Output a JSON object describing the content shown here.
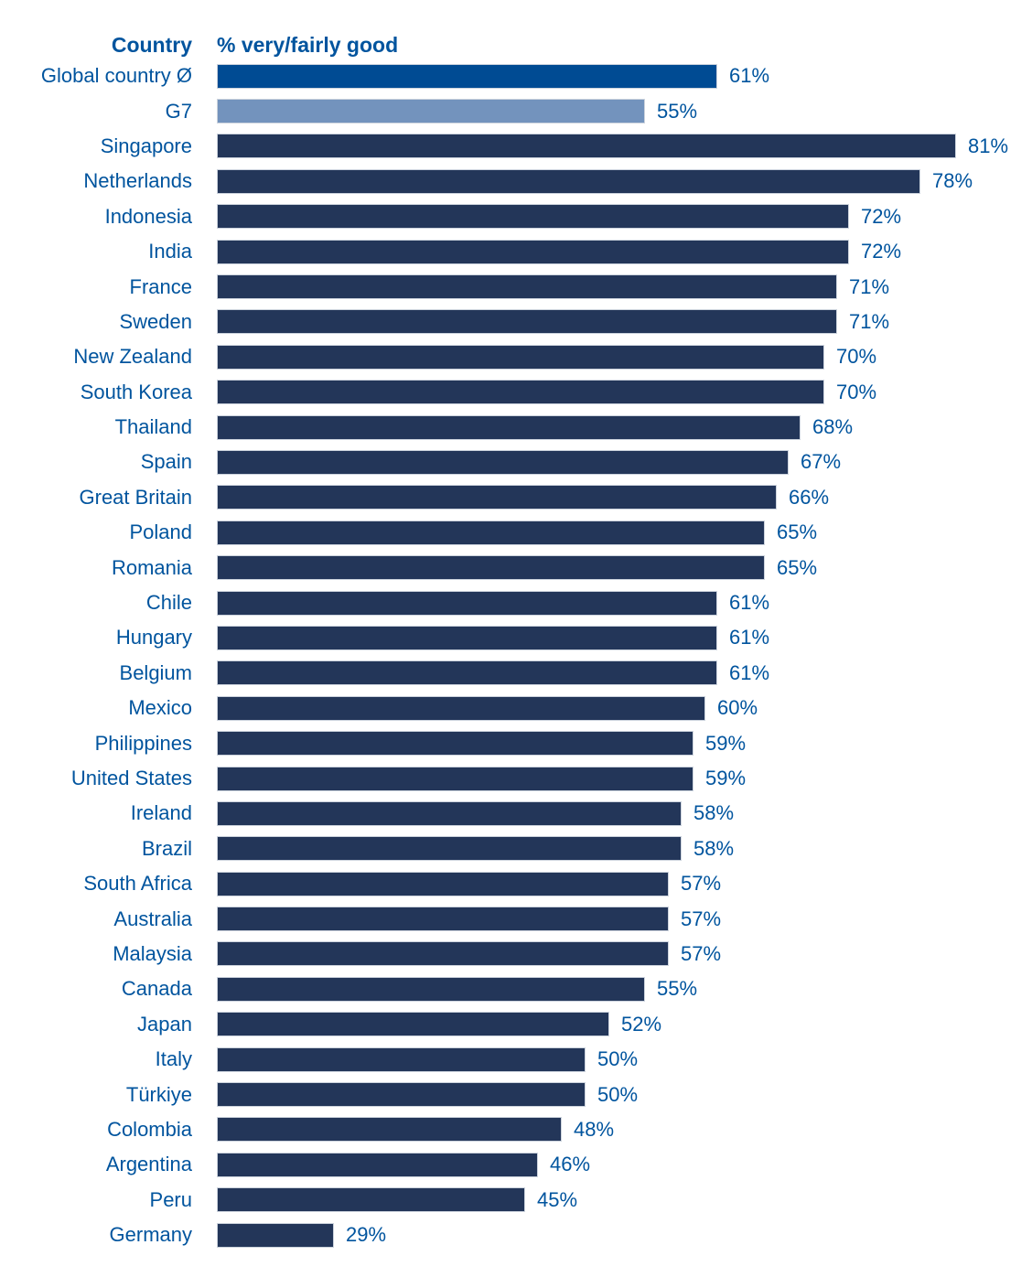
{
  "header": {
    "country_col": "Country",
    "value_col": "% very/fairly good"
  },
  "colors": {
    "text": "#00549e",
    "bar_default": "#233659",
    "bar_average": "#004b93",
    "bar_g7": "#7393bd",
    "bar_border": "#ccd3dd",
    "background": "#ffffff"
  },
  "chart_data": {
    "type": "bar",
    "orientation": "horizontal",
    "title": "",
    "columns": [
      "Country",
      "% very/fairly good"
    ],
    "value_format": "percent",
    "grid": false,
    "legend": false,
    "x_axis_visible": false,
    "visual_baseline_percent": 19.2,
    "rows": [
      {
        "label": "Global country Ø",
        "value": 61,
        "style": "average"
      },
      {
        "label": "G7",
        "value": 55,
        "style": "g7"
      },
      {
        "label": "Singapore",
        "value": 81,
        "style": "country"
      },
      {
        "label": "Netherlands",
        "value": 78,
        "style": "country"
      },
      {
        "label": "Indonesia",
        "value": 72,
        "style": "country"
      },
      {
        "label": "India",
        "value": 72,
        "style": "country"
      },
      {
        "label": "France",
        "value": 71,
        "style": "country"
      },
      {
        "label": "Sweden",
        "value": 71,
        "style": "country"
      },
      {
        "label": "New Zealand",
        "value": 70,
        "style": "country"
      },
      {
        "label": "South Korea",
        "value": 70,
        "style": "country"
      },
      {
        "label": "Thailand",
        "value": 68,
        "style": "country"
      },
      {
        "label": "Spain",
        "value": 67,
        "style": "country"
      },
      {
        "label": "Great Britain",
        "value": 66,
        "style": "country"
      },
      {
        "label": "Poland",
        "value": 65,
        "style": "country"
      },
      {
        "label": "Romania",
        "value": 65,
        "style": "country"
      },
      {
        "label": "Chile",
        "value": 61,
        "style": "country"
      },
      {
        "label": "Hungary",
        "value": 61,
        "style": "country"
      },
      {
        "label": "Belgium",
        "value": 61,
        "style": "country"
      },
      {
        "label": "Mexico",
        "value": 60,
        "style": "country"
      },
      {
        "label": "Philippines",
        "value": 59,
        "style": "country"
      },
      {
        "label": "United States",
        "value": 59,
        "style": "country"
      },
      {
        "label": "Ireland",
        "value": 58,
        "style": "country"
      },
      {
        "label": "Brazil",
        "value": 58,
        "style": "country"
      },
      {
        "label": "South Africa",
        "value": 57,
        "style": "country"
      },
      {
        "label": "Australia",
        "value": 57,
        "style": "country"
      },
      {
        "label": "Malaysia",
        "value": 57,
        "style": "country"
      },
      {
        "label": "Canada",
        "value": 55,
        "style": "country"
      },
      {
        "label": "Japan",
        "value": 52,
        "style": "country"
      },
      {
        "label": "Italy",
        "value": 50,
        "style": "country"
      },
      {
        "label": "Türkiye",
        "value": 50,
        "style": "country"
      },
      {
        "label": "Colombia",
        "value": 48,
        "style": "country"
      },
      {
        "label": "Argentina",
        "value": 46,
        "style": "country"
      },
      {
        "label": "Peru",
        "value": 45,
        "style": "country"
      },
      {
        "label": "Germany",
        "value": 29,
        "style": "country"
      }
    ]
  }
}
